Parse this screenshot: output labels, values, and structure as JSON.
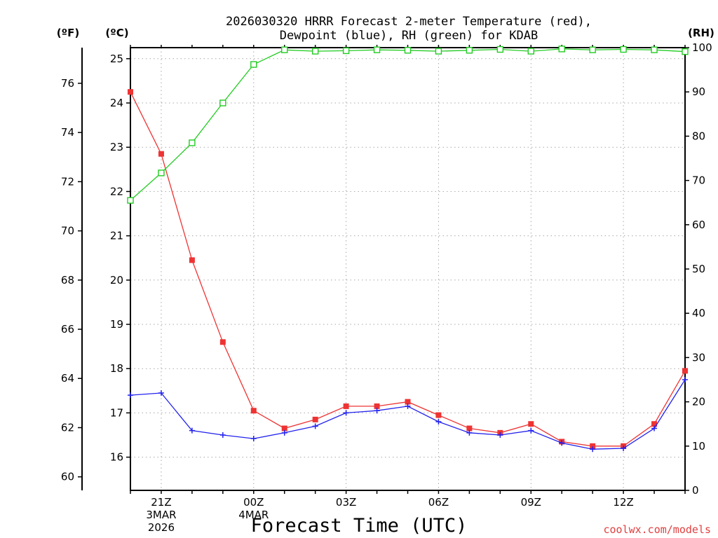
{
  "chart_data": {
    "type": "line",
    "title_lines": [
      "2026030320 HRRR Forecast 2-meter Temperature (red),",
      "Dewpoint (blue), RH (green) for KDAB"
    ],
    "xlabel": "Forecast Time (UTC)",
    "x_tick_labels": [
      "21Z",
      "00Z",
      "03Z",
      "06Z",
      "09Z",
      "12Z"
    ],
    "x_date_labels": [
      {
        "time": "21Z",
        "lines": [
          "3MAR",
          "2026"
        ]
      },
      {
        "time": "00Z",
        "lines": [
          "4MAR"
        ]
      }
    ],
    "x_hours": [
      20,
      21,
      22,
      23,
      24,
      25,
      26,
      27,
      28,
      29,
      30,
      31,
      32,
      33,
      34,
      35,
      36,
      37,
      38
    ],
    "xlim": [
      20,
      38
    ],
    "y_celsius": {
      "unit_label": "(ºC)",
      "ticks": [
        16,
        17,
        18,
        19,
        20,
        21,
        22,
        23,
        24,
        25
      ],
      "ylim": [
        15.25,
        25.25
      ]
    },
    "y_fahrenheit": {
      "unit_label": "(ºF)",
      "ticks": [
        60,
        62,
        64,
        66,
        68,
        70,
        72,
        74,
        76
      ]
    },
    "y_rh": {
      "unit_label": "(RH)",
      "ticks": [
        0,
        10,
        20,
        30,
        40,
        50,
        60,
        70,
        80,
        90,
        100
      ],
      "ylim": [
        0,
        100
      ]
    },
    "series": [
      {
        "name": "Temperature",
        "color": "#ee3333",
        "marker": "filled-square",
        "axis": "celsius",
        "values": [
          24.25,
          22.85,
          20.45,
          18.6,
          17.05,
          16.65,
          16.85,
          17.15,
          17.15,
          17.25,
          16.95,
          16.65,
          16.55,
          16.75,
          16.35,
          16.25,
          16.25,
          16.75,
          17.95
        ]
      },
      {
        "name": "Dewpoint",
        "color": "#2222ee",
        "marker": "plus",
        "axis": "celsius",
        "values": [
          17.4,
          17.45,
          16.6,
          16.5,
          16.42,
          16.55,
          16.7,
          17.0,
          17.05,
          17.15,
          16.8,
          16.55,
          16.5,
          16.6,
          16.32,
          16.18,
          16.2,
          16.65,
          17.75
        ]
      },
      {
        "name": "RH",
        "color": "#22cc22",
        "marker": "open-square",
        "axis": "rh",
        "values": [
          65.5,
          71.7,
          78.5,
          87.5,
          96.2,
          99.5,
          99.2,
          99.3,
          99.5,
          99.4,
          99.2,
          99.4,
          99.6,
          99.2,
          99.7,
          99.5,
          99.6,
          99.5,
          99.1
        ]
      }
    ],
    "grid": true,
    "credit": "coolwx.com/models"
  }
}
